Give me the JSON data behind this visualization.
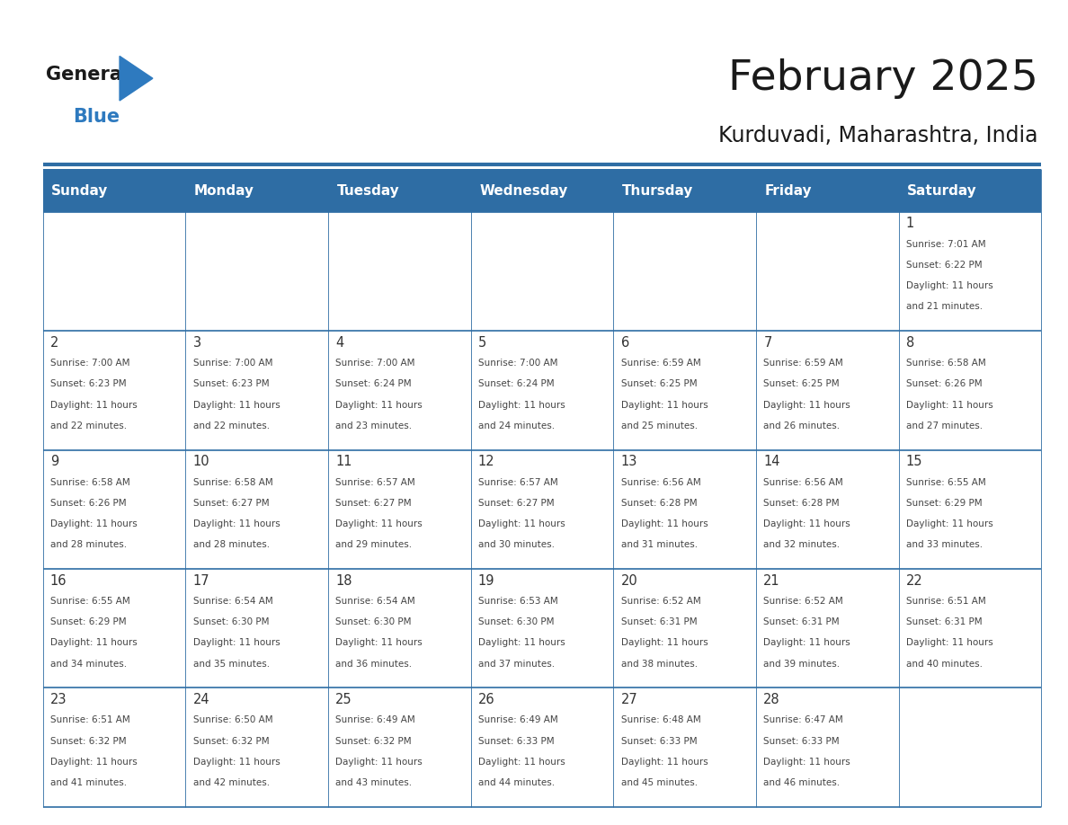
{
  "title": "February 2025",
  "subtitle": "Kurduvadi, Maharashtra, India",
  "header_bg": "#2e6da4",
  "header_text_color": "#ffffff",
  "cell_bg_white": "#ffffff",
  "border_color": "#2e6da4",
  "day_names": [
    "Sunday",
    "Monday",
    "Tuesday",
    "Wednesday",
    "Thursday",
    "Friday",
    "Saturday"
  ],
  "title_color": "#1a1a1a",
  "subtitle_color": "#1a1a1a",
  "number_color": "#333333",
  "text_color": "#444444",
  "days": [
    {
      "day": 1,
      "col": 6,
      "row": 0,
      "sunrise": "7:01 AM",
      "sunset": "6:22 PM",
      "daylight": "11 hours and 21 minutes."
    },
    {
      "day": 2,
      "col": 0,
      "row": 1,
      "sunrise": "7:00 AM",
      "sunset": "6:23 PM",
      "daylight": "11 hours and 22 minutes."
    },
    {
      "day": 3,
      "col": 1,
      "row": 1,
      "sunrise": "7:00 AM",
      "sunset": "6:23 PM",
      "daylight": "11 hours and 22 minutes."
    },
    {
      "day": 4,
      "col": 2,
      "row": 1,
      "sunrise": "7:00 AM",
      "sunset": "6:24 PM",
      "daylight": "11 hours and 23 minutes."
    },
    {
      "day": 5,
      "col": 3,
      "row": 1,
      "sunrise": "7:00 AM",
      "sunset": "6:24 PM",
      "daylight": "11 hours and 24 minutes."
    },
    {
      "day": 6,
      "col": 4,
      "row": 1,
      "sunrise": "6:59 AM",
      "sunset": "6:25 PM",
      "daylight": "11 hours and 25 minutes."
    },
    {
      "day": 7,
      "col": 5,
      "row": 1,
      "sunrise": "6:59 AM",
      "sunset": "6:25 PM",
      "daylight": "11 hours and 26 minutes."
    },
    {
      "day": 8,
      "col": 6,
      "row": 1,
      "sunrise": "6:58 AM",
      "sunset": "6:26 PM",
      "daylight": "11 hours and 27 minutes."
    },
    {
      "day": 9,
      "col": 0,
      "row": 2,
      "sunrise": "6:58 AM",
      "sunset": "6:26 PM",
      "daylight": "11 hours and 28 minutes."
    },
    {
      "day": 10,
      "col": 1,
      "row": 2,
      "sunrise": "6:58 AM",
      "sunset": "6:27 PM",
      "daylight": "11 hours and 28 minutes."
    },
    {
      "day": 11,
      "col": 2,
      "row": 2,
      "sunrise": "6:57 AM",
      "sunset": "6:27 PM",
      "daylight": "11 hours and 29 minutes."
    },
    {
      "day": 12,
      "col": 3,
      "row": 2,
      "sunrise": "6:57 AM",
      "sunset": "6:27 PM",
      "daylight": "11 hours and 30 minutes."
    },
    {
      "day": 13,
      "col": 4,
      "row": 2,
      "sunrise": "6:56 AM",
      "sunset": "6:28 PM",
      "daylight": "11 hours and 31 minutes."
    },
    {
      "day": 14,
      "col": 5,
      "row": 2,
      "sunrise": "6:56 AM",
      "sunset": "6:28 PM",
      "daylight": "11 hours and 32 minutes."
    },
    {
      "day": 15,
      "col": 6,
      "row": 2,
      "sunrise": "6:55 AM",
      "sunset": "6:29 PM",
      "daylight": "11 hours and 33 minutes."
    },
    {
      "day": 16,
      "col": 0,
      "row": 3,
      "sunrise": "6:55 AM",
      "sunset": "6:29 PM",
      "daylight": "11 hours and 34 minutes."
    },
    {
      "day": 17,
      "col": 1,
      "row": 3,
      "sunrise": "6:54 AM",
      "sunset": "6:30 PM",
      "daylight": "11 hours and 35 minutes."
    },
    {
      "day": 18,
      "col": 2,
      "row": 3,
      "sunrise": "6:54 AM",
      "sunset": "6:30 PM",
      "daylight": "11 hours and 36 minutes."
    },
    {
      "day": 19,
      "col": 3,
      "row": 3,
      "sunrise": "6:53 AM",
      "sunset": "6:30 PM",
      "daylight": "11 hours and 37 minutes."
    },
    {
      "day": 20,
      "col": 4,
      "row": 3,
      "sunrise": "6:52 AM",
      "sunset": "6:31 PM",
      "daylight": "11 hours and 38 minutes."
    },
    {
      "day": 21,
      "col": 5,
      "row": 3,
      "sunrise": "6:52 AM",
      "sunset": "6:31 PM",
      "daylight": "11 hours and 39 minutes."
    },
    {
      "day": 22,
      "col": 6,
      "row": 3,
      "sunrise": "6:51 AM",
      "sunset": "6:31 PM",
      "daylight": "11 hours and 40 minutes."
    },
    {
      "day": 23,
      "col": 0,
      "row": 4,
      "sunrise": "6:51 AM",
      "sunset": "6:32 PM",
      "daylight": "11 hours and 41 minutes."
    },
    {
      "day": 24,
      "col": 1,
      "row": 4,
      "sunrise": "6:50 AM",
      "sunset": "6:32 PM",
      "daylight": "11 hours and 42 minutes."
    },
    {
      "day": 25,
      "col": 2,
      "row": 4,
      "sunrise": "6:49 AM",
      "sunset": "6:32 PM",
      "daylight": "11 hours and 43 minutes."
    },
    {
      "day": 26,
      "col": 3,
      "row": 4,
      "sunrise": "6:49 AM",
      "sunset": "6:33 PM",
      "daylight": "11 hours and 44 minutes."
    },
    {
      "day": 27,
      "col": 4,
      "row": 4,
      "sunrise": "6:48 AM",
      "sunset": "6:33 PM",
      "daylight": "11 hours and 45 minutes."
    },
    {
      "day": 28,
      "col": 5,
      "row": 4,
      "sunrise": "6:47 AM",
      "sunset": "6:33 PM",
      "daylight": "11 hours and 46 minutes."
    }
  ],
  "num_rows": 5,
  "num_cols": 7,
  "logo_general_color": "#1a1a1a",
  "logo_blue_color": "#2e7abf"
}
